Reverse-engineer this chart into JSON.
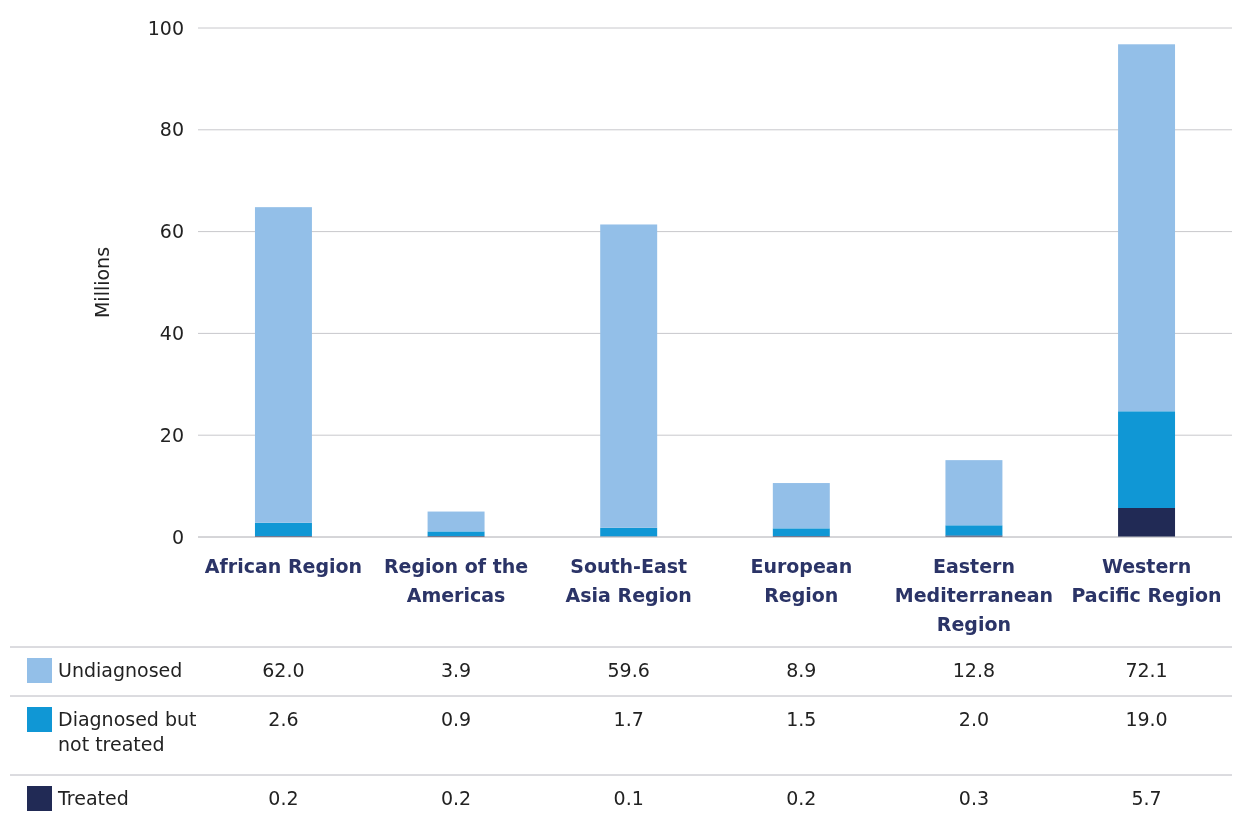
{
  "chart_data": {
    "type": "bar",
    "stacked": true,
    "ylabel": "Millions",
    "categories": [
      "African Region",
      "Region of the Americas",
      "South-East Asia Region",
      "European Region",
      "Eastern Mediterranean Region",
      "Western Pacific Region"
    ],
    "series": [
      {
        "name": "Treated",
        "color": "#212a55",
        "values": [
          0.2,
          0.2,
          0.1,
          0.2,
          0.3,
          5.7
        ],
        "value_labels": [
          "0.2",
          "0.2",
          "0.1",
          "0.2",
          "0.3",
          "5.7"
        ]
      },
      {
        "name": "Diagnosed but not treated",
        "color": "#1097d5",
        "values": [
          2.6,
          0.9,
          1.7,
          1.5,
          2.0,
          19.0
        ],
        "value_labels": [
          "2.6",
          "0.9",
          "1.7",
          "1.5",
          "2.0",
          "19.0"
        ]
      },
      {
        "name": "Undiagnosed",
        "color": "#93bfe8",
        "values": [
          62.0,
          3.9,
          59.6,
          8.9,
          12.8,
          72.1
        ],
        "value_labels": [
          "62.0",
          "3.9",
          "59.6",
          "8.9",
          "12.8",
          "72.1"
        ]
      }
    ],
    "ylim": [
      0,
      100
    ],
    "yticks": [
      0,
      20,
      40,
      60,
      80,
      100
    ],
    "grid": "y",
    "legend": "bottom"
  }
}
